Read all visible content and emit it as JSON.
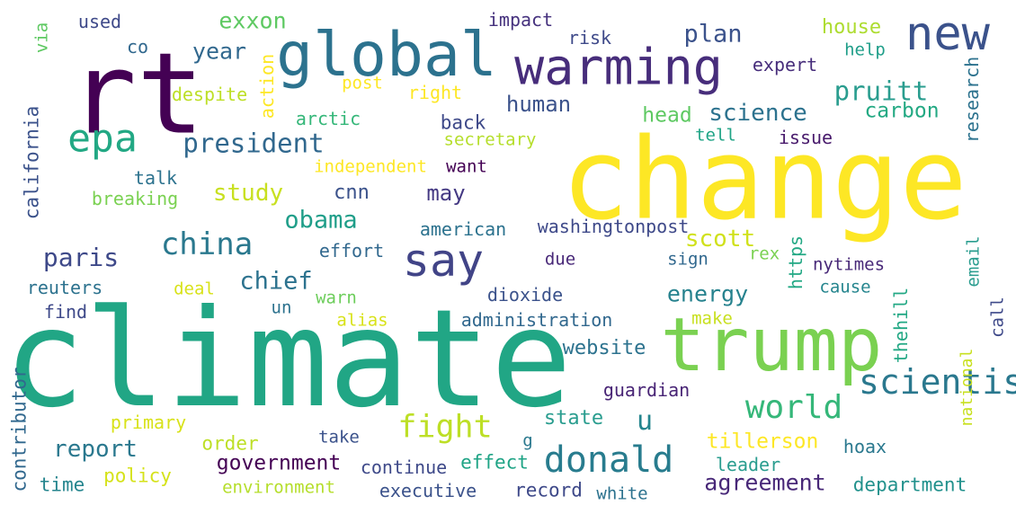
{
  "words": [
    {
      "text": "climate",
      "color": "#21a685"
    },
    {
      "text": "change",
      "color": "#fde725"
    },
    {
      "text": "rt",
      "color": "#440154"
    },
    {
      "text": "global",
      "color": "#2c728e"
    },
    {
      "text": "trump",
      "color": "#7ad151"
    },
    {
      "text": "warming",
      "color": "#472d7b"
    },
    {
      "text": "new",
      "color": "#3b528b"
    },
    {
      "text": "say",
      "color": "#414487"
    },
    {
      "text": "epa",
      "color": "#22a884"
    },
    {
      "text": "scientist",
      "color": "#2a788e"
    },
    {
      "text": "donald",
      "color": "#287c8e"
    },
    {
      "text": "china",
      "color": "#2a788e"
    },
    {
      "text": "world",
      "color": "#35b779"
    },
    {
      "text": "fight",
      "color": "#bddf26"
    },
    {
      "text": "president",
      "color": "#31688e"
    },
    {
      "text": "pruitt",
      "color": "#2a9d8f"
    },
    {
      "text": "obama",
      "color": "#1f9e89"
    },
    {
      "text": "paris",
      "color": "#3e4989"
    },
    {
      "text": "plan",
      "color": "#3b528b"
    },
    {
      "text": "science",
      "color": "#2c728e"
    },
    {
      "text": "study",
      "color": "#c8e020"
    },
    {
      "text": "report",
      "color": "#2a788e"
    },
    {
      "text": "agreement",
      "color": "#482878"
    },
    {
      "text": "energy",
      "color": "#26828e"
    },
    {
      "text": "chief",
      "color": "#2c728e"
    },
    {
      "text": "u",
      "color": "#25858e"
    },
    {
      "text": "scott",
      "color": "#d0e11c"
    },
    {
      "text": "government",
      "color": "#440154"
    },
    {
      "text": "tillerson",
      "color": "#fde725"
    },
    {
      "text": "year",
      "color": "#31688e"
    },
    {
      "text": "human",
      "color": "#3b528b"
    },
    {
      "text": "head",
      "color": "#5ec962"
    },
    {
      "text": "carbon",
      "color": "#23a983"
    },
    {
      "text": "exxon",
      "color": "#5ec962"
    },
    {
      "text": "may",
      "color": "#443983"
    },
    {
      "text": "cnn",
      "color": "#3b528b"
    },
    {
      "text": "state",
      "color": "#2a9d8f"
    },
    {
      "text": "website",
      "color": "#2c728e"
    },
    {
      "text": "record",
      "color": "#3e4989"
    },
    {
      "text": "order",
      "color": "#bddf26"
    },
    {
      "text": "house",
      "color": "#addc30"
    },
    {
      "text": "effect",
      "color": "#20a486"
    },
    {
      "text": "time",
      "color": "#25858e"
    },
    {
      "text": "back",
      "color": "#3e4989"
    },
    {
      "text": "guardian",
      "color": "#482475"
    },
    {
      "text": "continue",
      "color": "#3e4989"
    },
    {
      "text": "executive",
      "color": "#3b528b"
    },
    {
      "text": "leader",
      "color": "#2a9d8f"
    },
    {
      "text": "department",
      "color": "#21918c"
    },
    {
      "text": "policy",
      "color": "#d5e21a"
    },
    {
      "text": "administration",
      "color": "#31688e"
    },
    {
      "text": "arctic",
      "color": "#35b779"
    },
    {
      "text": "dioxide",
      "color": "#3b528b"
    },
    {
      "text": "despite",
      "color": "#bddf26"
    },
    {
      "text": "impact",
      "color": "#46327e"
    },
    {
      "text": "american",
      "color": "#2c728e"
    },
    {
      "text": "washingtonpost",
      "color": "#3e4989"
    },
    {
      "text": "secretary",
      "color": "#b5de2b"
    },
    {
      "text": "environment",
      "color": "#b5de2b"
    },
    {
      "text": "independent",
      "color": "#fde725"
    },
    {
      "text": "tell",
      "color": "#20a486"
    },
    {
      "text": "issue",
      "color": "#481a6c"
    },
    {
      "text": "risk",
      "color": "#3e4989"
    },
    {
      "text": "right",
      "color": "#fde725"
    },
    {
      "text": "primary",
      "color": "#d8e219"
    },
    {
      "text": "expert",
      "color": "#472d7b"
    },
    {
      "text": "effort",
      "color": "#31688e"
    },
    {
      "text": "talk",
      "color": "#2c728e"
    },
    {
      "text": "breaking",
      "color": "#7ad151"
    },
    {
      "text": "want",
      "color": "#440154"
    },
    {
      "text": "take",
      "color": "#3b528b"
    },
    {
      "text": "hoax",
      "color": "#2a788e"
    },
    {
      "text": "post",
      "color": "#fde725"
    },
    {
      "text": "nytimes",
      "color": "#482878"
    },
    {
      "text": "cause",
      "color": "#25858e"
    },
    {
      "text": "sign",
      "color": "#31688e"
    },
    {
      "text": "rex",
      "color": "#7ad151"
    },
    {
      "text": "reuters",
      "color": "#2c728e"
    },
    {
      "text": "find",
      "color": "#3e4989"
    },
    {
      "text": "used",
      "color": "#3e4989"
    },
    {
      "text": "co",
      "color": "#31688e"
    },
    {
      "text": "help",
      "color": "#1f9e89"
    },
    {
      "text": "deal",
      "color": "#d8e219"
    },
    {
      "text": "un",
      "color": "#2c728e"
    },
    {
      "text": "warn",
      "color": "#6ccd5a"
    },
    {
      "text": "alias",
      "color": "#d8e219"
    },
    {
      "text": "make",
      "color": "#c8e020"
    },
    {
      "text": "due",
      "color": "#482878"
    },
    {
      "text": "white",
      "color": "#2c728e"
    },
    {
      "text": "g",
      "color": "#2a788e"
    },
    {
      "text": "california",
      "color": "#3b528b",
      "rotated": true
    },
    {
      "text": "contributor",
      "color": "#31688e",
      "rotated": true
    },
    {
      "text": "action",
      "color": "#fde725",
      "rotated": true
    },
    {
      "text": "research",
      "color": "#2c728e",
      "rotated": true
    },
    {
      "text": "thehill",
      "color": "#22a884",
      "rotated": true
    },
    {
      "text": "call",
      "color": "#3e4989",
      "rotated": true
    },
    {
      "text": "https",
      "color": "#22a884",
      "rotated": true
    },
    {
      "text": "email",
      "color": "#2a9d8f",
      "rotated": true
    },
    {
      "text": "national",
      "color": "#c8e020",
      "rotated": true
    },
    {
      "text": "via",
      "color": "#5ec962",
      "rotated": true
    }
  ]
}
